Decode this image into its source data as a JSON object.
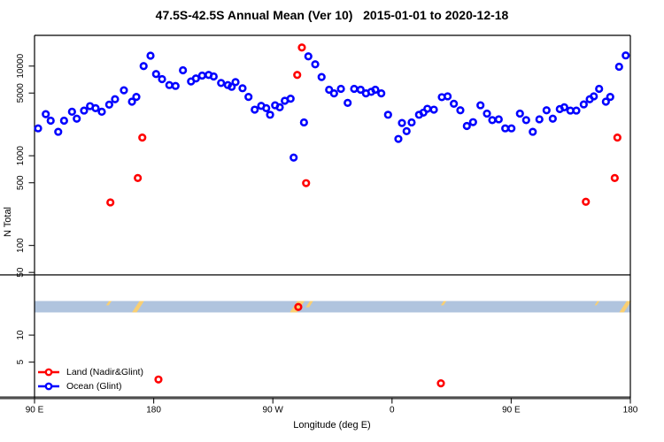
{
  "title": "47.5S-42.5S Annual Mean (Ver 10)   2015-01-01 to 2020-12-18",
  "axes": {
    "x_label": "Longitude (deg E)",
    "y_label": "N Total"
  },
  "legend": {
    "items": [
      {
        "label": "Land (Nadir&Glint)",
        "color": "#ff0000"
      },
      {
        "label": "Ocean (Glint)",
        "color": "#0000ff"
      }
    ]
  },
  "colors": {
    "land_series": "#ff0000",
    "ocean_series": "#0000ff",
    "strip_ocean": "#b0c4de",
    "strip_land": "#f9cf72",
    "ref_line_upper": "#3c3c3c",
    "ref_line_lower": "#4f4f4f",
    "box": "#000000"
  },
  "chart_data": {
    "type": "scatter",
    "title": "47.5S-42.5S Annual Mean (Ver 10)   2015-01-01 to 2020-12-18",
    "xlabel": "Longitude (deg E)",
    "ylabel": "N Total",
    "y_scale": "log",
    "x_axis": {
      "range": [
        90,
        540
      ],
      "note": "longitude axis wraps the globe: 90E to 180 to 90W to 0 to 90E to 180",
      "ticks": [
        {
          "t": 90,
          "label": "90 E"
        },
        {
          "t": 180,
          "label": "180"
        },
        {
          "t": 270,
          "label": "90 W"
        },
        {
          "t": 360,
          "label": "0"
        },
        {
          "t": 450,
          "label": "90 E"
        },
        {
          "t": 540,
          "label": "180"
        }
      ]
    },
    "y_axis": {
      "range": [
        2,
        22000
      ],
      "ticks": [
        {
          "v": 10000,
          "label": "10000"
        },
        {
          "v": 5000,
          "label": "5000"
        },
        {
          "v": 1000,
          "label": "1000"
        },
        {
          "v": 500,
          "label": "500"
        },
        {
          "v": 100,
          "label": "100"
        },
        {
          "v": 50,
          "label": "50"
        },
        {
          "v": 10,
          "label": "10"
        },
        {
          "v": 5,
          "label": "5"
        }
      ]
    },
    "reference_lines": [
      {
        "n": 47,
        "color": "#3c3c3c",
        "width": 1.6
      },
      {
        "n": 2,
        "color": "#4f4f4f",
        "width": 3.2
      }
    ],
    "land_ocean_strip": {
      "n_range": [
        17.9,
        24
      ],
      "ocean_color": "#b0c4de",
      "land_color": "#f9cf72",
      "land_marks": [
        {
          "t": 147.2,
          "w_deg": 2.0,
          "extent": "top"
        },
        {
          "t": 171.0,
          "w_deg": 3.5,
          "extent": "full"
        },
        {
          "t": 291.2,
          "w_deg": 5.5,
          "extent": "full"
        },
        {
          "t": 299.2,
          "w_deg": 2.5,
          "extent": "upper"
        },
        {
          "t": 400.0,
          "w_deg": 2.0,
          "extent": "top"
        },
        {
          "t": 515.9,
          "w_deg": 1.5,
          "extent": "top"
        },
        {
          "t": 539.0,
          "w_deg": 3.5,
          "extent": "full"
        }
      ]
    },
    "series": [
      {
        "name": "Ocean (Glint)",
        "color": "#0000ff",
        "points": [
          [
            92.7,
            2020
          ],
          [
            98.5,
            2910
          ],
          [
            102.2,
            2460
          ],
          [
            107.9,
            1850
          ],
          [
            112.3,
            2460
          ],
          [
            118.3,
            3095
          ],
          [
            121.9,
            2590
          ],
          [
            127.4,
            3190
          ],
          [
            131.9,
            3575
          ],
          [
            136.1,
            3390
          ],
          [
            140.8,
            3095
          ],
          [
            146.4,
            3715
          ],
          [
            150.8,
            4270
          ],
          [
            157.5,
            5370
          ],
          [
            163.6,
            4010
          ],
          [
            166.9,
            4530
          ],
          [
            172.4,
            10000
          ],
          [
            177.6,
            13050
          ],
          [
            181.8,
            8155
          ],
          [
            186.3,
            7155
          ],
          [
            191.8,
            6145
          ],
          [
            196.5,
            6005
          ],
          [
            202.1,
            8970
          ],
          [
            208.2,
            6740
          ],
          [
            211.9,
            7270
          ],
          [
            216.6,
            7840
          ],
          [
            221.5,
            7970
          ],
          [
            225.3,
            7660
          ],
          [
            230.9,
            6480
          ],
          [
            236.0,
            6145
          ],
          [
            238.9,
            5870
          ],
          [
            241.8,
            6630
          ],
          [
            247.1,
            5660
          ],
          [
            251.6,
            4530
          ],
          [
            256.3,
            3265
          ],
          [
            261.2,
            3600
          ],
          [
            265.0,
            3390
          ],
          [
            267.9,
            2865
          ],
          [
            271.7,
            3655
          ],
          [
            275.2,
            3470
          ],
          [
            279.0,
            4105
          ],
          [
            283.4,
            4330
          ],
          [
            285.7,
            955
          ],
          [
            293.5,
            2355
          ],
          [
            296.8,
            12830
          ],
          [
            302.0,
            10465
          ],
          [
            306.8,
            7555
          ],
          [
            312.5,
            5445
          ],
          [
            316.2,
            4965
          ],
          [
            321.4,
            5570
          ],
          [
            326.5,
            3890
          ],
          [
            331.4,
            5570
          ],
          [
            336.3,
            5445
          ],
          [
            340.3,
            4965
          ],
          [
            344.3,
            5165
          ],
          [
            347.4,
            5445
          ],
          [
            351.9,
            4965
          ],
          [
            357.0,
            2865
          ],
          [
            364.8,
            1540
          ],
          [
            367.5,
            2320
          ],
          [
            371.0,
            1880
          ],
          [
            374.8,
            2355
          ],
          [
            380.4,
            2865
          ],
          [
            383.7,
            3025
          ],
          [
            386.7,
            3340
          ],
          [
            391.6,
            3265
          ],
          [
            397.6,
            4500
          ],
          [
            402.0,
            4600
          ],
          [
            406.7,
            3800
          ],
          [
            411.6,
            3215
          ],
          [
            416.5,
            2150
          ],
          [
            421.2,
            2370
          ],
          [
            426.8,
            3655
          ],
          [
            431.7,
            2955
          ],
          [
            435.7,
            2495
          ],
          [
            440.6,
            2550
          ],
          [
            445.5,
            2020
          ],
          [
            450.2,
            2020
          ],
          [
            456.6,
            2955
          ],
          [
            461.3,
            2495
          ],
          [
            466.3,
            1850
          ],
          [
            471.3,
            2550
          ],
          [
            476.7,
            3215
          ],
          [
            481.4,
            2590
          ],
          [
            486.7,
            3315
          ],
          [
            490.1,
            3470
          ],
          [
            494.7,
            3190
          ],
          [
            499.2,
            3190
          ],
          [
            504.8,
            3740
          ],
          [
            509.3,
            4270
          ],
          [
            512.4,
            4600
          ],
          [
            516.4,
            5570
          ],
          [
            521.5,
            4010
          ],
          [
            524.8,
            4530
          ],
          [
            531.5,
            9840
          ],
          [
            536.5,
            13140
          ]
        ]
      },
      {
        "name": "Land (Nadir&Glint)",
        "color": "#ff0000",
        "points": [
          [
            147.3,
            302
          ],
          [
            168.0,
            565
          ],
          [
            171.4,
            1595
          ],
          [
            183.6,
            3.2
          ],
          [
            288.4,
            7970
          ],
          [
            289.2,
            20.6
          ],
          [
            291.9,
            16100
          ],
          [
            295.1,
            495
          ],
          [
            396.9,
            2.9
          ],
          [
            506.4,
            307
          ],
          [
            528.2,
            565
          ],
          [
            530.2,
            1595
          ]
        ]
      }
    ],
    "legend_position": "bottom-left",
    "grid": false
  }
}
